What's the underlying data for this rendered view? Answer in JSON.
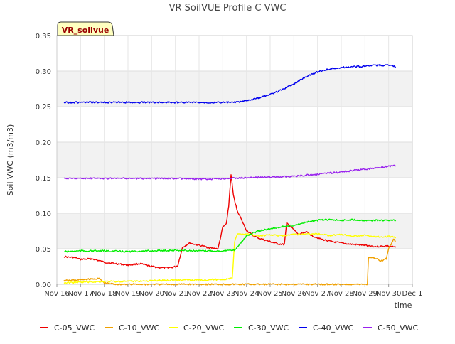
{
  "chart_data": {
    "type": "line",
    "title": "VR SoilVUE Profile C VWC",
    "xlabel": "time",
    "ylabel": "Soil VWC (m3/m3)",
    "badge": "VR_soilvue",
    "ylim": [
      0,
      0.35
    ],
    "xlim": [
      0,
      15
    ],
    "y_ticks": [
      {
        "v": 0.0,
        "label": "0.00"
      },
      {
        "v": 0.05,
        "label": "0.05"
      },
      {
        "v": 0.1,
        "label": "0.10"
      },
      {
        "v": 0.15,
        "label": "0.15"
      },
      {
        "v": 0.2,
        "label": "0.20"
      },
      {
        "v": 0.25,
        "label": "0.25"
      },
      {
        "v": 0.3,
        "label": "0.30"
      },
      {
        "v": 0.35,
        "label": "0.35"
      }
    ],
    "x_ticks": [
      {
        "v": 0,
        "label": "Nov 16"
      },
      {
        "v": 1,
        "label": "Nov 17"
      },
      {
        "v": 2,
        "label": "Nov 18"
      },
      {
        "v": 3,
        "label": "Nov 19"
      },
      {
        "v": 4,
        "label": "Nov 20"
      },
      {
        "v": 5,
        "label": "Nov 21"
      },
      {
        "v": 6,
        "label": "Nov 22"
      },
      {
        "v": 7,
        "label": "Nov 23"
      },
      {
        "v": 8,
        "label": "Nov 24"
      },
      {
        "v": 9,
        "label": "Nov 25"
      },
      {
        "v": 10,
        "label": "Nov 26"
      },
      {
        "v": 11,
        "label": "Nov 27"
      },
      {
        "v": 12,
        "label": "Nov 28"
      },
      {
        "v": 13,
        "label": "Nov 29"
      },
      {
        "v": 14,
        "label": "Nov 30"
      },
      {
        "v": 15,
        "label": "Dec 1"
      }
    ],
    "grid": true,
    "legend_position": "bottom",
    "series": [
      {
        "name": "C-05_VWC",
        "color": "#ee0000",
        "points": [
          [
            0.3,
            0.039
          ],
          [
            0.8,
            0.037
          ],
          [
            1.0,
            0.035
          ],
          [
            1.5,
            0.036
          ],
          [
            2.0,
            0.031
          ],
          [
            2.5,
            0.029
          ],
          [
            3.0,
            0.027
          ],
          [
            3.5,
            0.029
          ],
          [
            4.0,
            0.025
          ],
          [
            4.5,
            0.023
          ],
          [
            4.9,
            0.024
          ],
          [
            5.1,
            0.026
          ],
          [
            5.3,
            0.052
          ],
          [
            5.6,
            0.058
          ],
          [
            6.0,
            0.055
          ],
          [
            6.5,
            0.051
          ],
          [
            6.8,
            0.05
          ],
          [
            7.0,
            0.08
          ],
          [
            7.15,
            0.085
          ],
          [
            7.25,
            0.11
          ],
          [
            7.35,
            0.155
          ],
          [
            7.45,
            0.125
          ],
          [
            7.6,
            0.105
          ],
          [
            7.8,
            0.09
          ],
          [
            8.0,
            0.076
          ],
          [
            8.3,
            0.068
          ],
          [
            8.6,
            0.064
          ],
          [
            9.0,
            0.06
          ],
          [
            9.3,
            0.057
          ],
          [
            9.6,
            0.056
          ],
          [
            9.7,
            0.086
          ],
          [
            9.9,
            0.08
          ],
          [
            10.2,
            0.07
          ],
          [
            10.5,
            0.074
          ],
          [
            10.8,
            0.068
          ],
          [
            11.2,
            0.063
          ],
          [
            11.6,
            0.06
          ],
          [
            12.0,
            0.058
          ],
          [
            12.5,
            0.056
          ],
          [
            13.0,
            0.055
          ],
          [
            13.5,
            0.053
          ],
          [
            13.9,
            0.054
          ],
          [
            14.3,
            0.052
          ]
        ]
      },
      {
        "name": "C-10_VWC",
        "color": "#f0a000",
        "points": [
          [
            0.3,
            0.005
          ],
          [
            0.8,
            0.006
          ],
          [
            1.3,
            0.007
          ],
          [
            1.8,
            0.008
          ],
          [
            2.0,
            0.002
          ],
          [
            2.5,
            0.0
          ],
          [
            5.0,
            0.0
          ],
          [
            9.0,
            0.0
          ],
          [
            13.1,
            0.0
          ],
          [
            13.15,
            0.038
          ],
          [
            13.4,
            0.037
          ],
          [
            13.7,
            0.033
          ],
          [
            13.9,
            0.036
          ],
          [
            14.0,
            0.05
          ],
          [
            14.2,
            0.063
          ],
          [
            14.3,
            0.061
          ]
        ]
      },
      {
        "name": "C-20_VWC",
        "color": "#ffff00",
        "points": [
          [
            0.3,
            0.002
          ],
          [
            1.0,
            0.003
          ],
          [
            2.0,
            0.004
          ],
          [
            3.0,
            0.004
          ],
          [
            4.0,
            0.005
          ],
          [
            5.0,
            0.006
          ],
          [
            6.0,
            0.006
          ],
          [
            7.0,
            0.007
          ],
          [
            7.4,
            0.008
          ],
          [
            7.5,
            0.06
          ],
          [
            7.6,
            0.07
          ],
          [
            8.0,
            0.071
          ],
          [
            8.5,
            0.068
          ],
          [
            9.0,
            0.07
          ],
          [
            9.5,
            0.068
          ],
          [
            10.0,
            0.07
          ],
          [
            10.5,
            0.071
          ],
          [
            11.0,
            0.071
          ],
          [
            11.5,
            0.069
          ],
          [
            12.0,
            0.07
          ],
          [
            12.5,
            0.068
          ],
          [
            13.0,
            0.069
          ],
          [
            13.5,
            0.067
          ],
          [
            14.0,
            0.067
          ],
          [
            14.3,
            0.066
          ]
        ]
      },
      {
        "name": "C-30_VWC",
        "color": "#00ee00",
        "points": [
          [
            0.3,
            0.046
          ],
          [
            1.0,
            0.047
          ],
          [
            2.0,
            0.047
          ],
          [
            3.0,
            0.046
          ],
          [
            4.0,
            0.047
          ],
          [
            5.0,
            0.048
          ],
          [
            6.0,
            0.047
          ],
          [
            7.0,
            0.047
          ],
          [
            7.5,
            0.048
          ],
          [
            7.8,
            0.06
          ],
          [
            8.0,
            0.068
          ],
          [
            8.5,
            0.075
          ],
          [
            9.0,
            0.078
          ],
          [
            9.5,
            0.081
          ],
          [
            10.0,
            0.083
          ],
          [
            10.5,
            0.087
          ],
          [
            11.0,
            0.09
          ],
          [
            11.5,
            0.091
          ],
          [
            12.0,
            0.09
          ],
          [
            12.5,
            0.091
          ],
          [
            13.0,
            0.09
          ],
          [
            13.5,
            0.09
          ],
          [
            14.0,
            0.09
          ],
          [
            14.3,
            0.09
          ]
        ]
      },
      {
        "name": "C-40_VWC",
        "color": "#0000ee",
        "points": [
          [
            0.3,
            0.256
          ],
          [
            1.0,
            0.256
          ],
          [
            2.0,
            0.256
          ],
          [
            3.0,
            0.256
          ],
          [
            4.0,
            0.256
          ],
          [
            5.0,
            0.256
          ],
          [
            6.0,
            0.256
          ],
          [
            7.0,
            0.256
          ],
          [
            7.5,
            0.256
          ],
          [
            8.0,
            0.258
          ],
          [
            8.5,
            0.262
          ],
          [
            9.0,
            0.267
          ],
          [
            9.5,
            0.274
          ],
          [
            10.0,
            0.282
          ],
          [
            10.5,
            0.292
          ],
          [
            11.0,
            0.299
          ],
          [
            11.5,
            0.303
          ],
          [
            12.0,
            0.305
          ],
          [
            12.5,
            0.306
          ],
          [
            13.0,
            0.307
          ],
          [
            13.5,
            0.308
          ],
          [
            14.0,
            0.308
          ],
          [
            14.3,
            0.306
          ]
        ]
      },
      {
        "name": "C-50_VWC",
        "color": "#9922ee",
        "points": [
          [
            0.3,
            0.149
          ],
          [
            1.0,
            0.149
          ],
          [
            2.0,
            0.149
          ],
          [
            3.0,
            0.149
          ],
          [
            4.0,
            0.149
          ],
          [
            5.0,
            0.149
          ],
          [
            6.0,
            0.148
          ],
          [
            6.5,
            0.148
          ],
          [
            7.0,
            0.149
          ],
          [
            8.0,
            0.15
          ],
          [
            9.0,
            0.151
          ],
          [
            10.0,
            0.152
          ],
          [
            11.0,
            0.155
          ],
          [
            12.0,
            0.158
          ],
          [
            13.0,
            0.162
          ],
          [
            14.0,
            0.166
          ],
          [
            14.3,
            0.167
          ]
        ]
      }
    ]
  }
}
